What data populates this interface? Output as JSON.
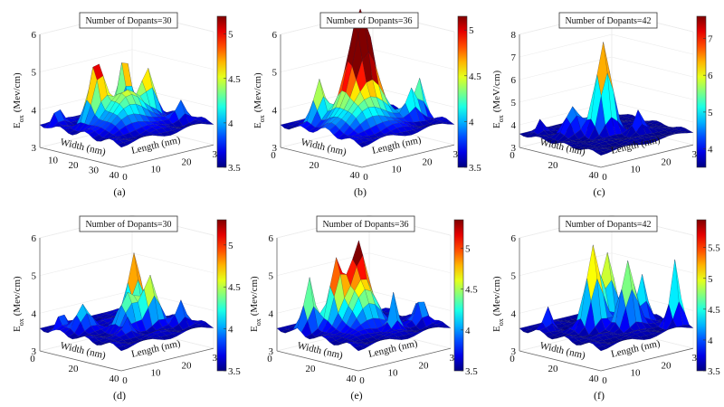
{
  "chart_data": [
    {
      "type": "surface",
      "caption": "(a)",
      "title": "Number of Dopants=30",
      "xlabel": "Width (nm)",
      "ylabel": "Length (nm)",
      "zlabel_main": "E",
      "zlabel_sub": "ox",
      "zlabel_unit": "(Mev/cm)",
      "xticks": [
        10,
        20,
        30,
        40
      ],
      "yticks": [
        0,
        10,
        20,
        30
      ],
      "zticks": [
        3,
        4,
        5,
        6
      ],
      "zlim": [
        3,
        6
      ],
      "clim": [
        3.5,
        5.2
      ],
      "cticks": [
        3.5,
        4,
        4.5,
        5
      ],
      "colormap": "jet",
      "grid": true,
      "base": 3.6,
      "surface_peaks": [
        [
          14,
          9,
          5.1,
          2.2
        ],
        [
          22,
          13,
          4.5,
          5
        ],
        [
          10,
          21,
          5.2,
          1.8
        ],
        [
          20,
          22,
          4.8,
          2
        ],
        [
          4,
          3,
          4.1,
          1.3
        ],
        [
          30,
          26,
          4.1,
          1.5
        ]
      ]
    },
    {
      "type": "surface",
      "caption": "(b)",
      "title": "Number of Dopants=36",
      "xlabel": "Width (nm)",
      "ylabel": "Length (nm)",
      "zlabel_main": "E",
      "zlabel_sub": "ox",
      "zlabel_unit": "(Mev/cm)",
      "xticks": [
        0,
        20,
        40
      ],
      "yticks": [
        0,
        10,
        20,
        30
      ],
      "zticks": [
        3,
        4,
        5,
        6
      ],
      "zlim": [
        3,
        6
      ],
      "clim": [
        3.5,
        5.15
      ],
      "cticks": [
        3.5,
        4,
        4.5,
        5
      ],
      "colormap": "jet",
      "grid": true,
      "base": 3.6,
      "surface_peaks": [
        [
          18,
          14,
          5.9,
          3
        ],
        [
          22,
          12,
          4.6,
          6
        ],
        [
          10,
          6,
          4.8,
          1.8
        ],
        [
          28,
          24,
          4.3,
          1.5
        ],
        [
          26,
          28,
          4.6,
          1.5
        ]
      ]
    },
    {
      "type": "surface",
      "caption": "(c)",
      "title": "Number of Dopants=42",
      "xlabel": "Width (nm)",
      "ylabel": "Length (nm)",
      "zlabel_main": "E",
      "zlabel_sub": "ox",
      "zlabel_unit": "(MeV/cm)",
      "xticks": [
        0,
        20,
        40
      ],
      "yticks": [
        0,
        10,
        20,
        30
      ],
      "zticks": [
        3,
        4,
        5,
        6,
        7,
        8
      ],
      "zlim": [
        3,
        8
      ],
      "clim": [
        3.5,
        7.6
      ],
      "cticks": [
        4,
        5,
        6,
        7
      ],
      "colormap": "jet",
      "grid": true,
      "base": 3.6,
      "surface_peaks": [
        [
          20,
          14,
          7.6,
          2.2
        ],
        [
          14,
          8,
          4.8,
          2.2
        ],
        [
          28,
          20,
          4.6,
          1.5
        ],
        [
          4,
          4,
          4.2,
          1.2
        ]
      ]
    },
    {
      "type": "surface",
      "caption": "(d)",
      "title": "Number of Dopants=30",
      "xlabel": "Width (nm)",
      "ylabel": "Length (nm)",
      "zlabel_main": "E",
      "zlabel_sub": "ox",
      "zlabel_unit": "(Mev/cm)",
      "xticks": [
        0,
        20,
        40
      ],
      "yticks": [
        0,
        10,
        20,
        30
      ],
      "zticks": [
        3,
        4,
        5,
        6
      ],
      "zlim": [
        3,
        6
      ],
      "clim": [
        3.5,
        5.3
      ],
      "cticks": [
        3.5,
        4,
        4.5,
        5
      ],
      "colormap": "jet",
      "grid": true,
      "base": 3.6,
      "surface_peaks": [
        [
          16,
          20,
          5.4,
          2
        ],
        [
          22,
          14,
          4.5,
          2.5
        ],
        [
          24,
          20,
          4.9,
          2
        ],
        [
          12,
          6,
          4.3,
          2
        ],
        [
          6,
          3,
          4.1,
          1.2
        ],
        [
          30,
          26,
          4.2,
          1.4
        ],
        [
          28,
          10,
          4.0,
          1.2
        ]
      ]
    },
    {
      "type": "surface",
      "caption": "(e)",
      "title": "Number of Dopants=36",
      "xlabel": "Width (nm)",
      "ylabel": "Length (nm)",
      "zlabel_main": "E",
      "zlabel_sub": "ox",
      "zlabel_unit": "(Mev/cm)",
      "xticks": [
        0,
        20,
        40
      ],
      "yticks": [
        0,
        10,
        20,
        30
      ],
      "zticks": [
        3,
        4,
        5,
        6
      ],
      "zlim": [
        3,
        6
      ],
      "clim": [
        3.5,
        5.35
      ],
      "cticks": [
        3.5,
        4,
        4.5,
        5
      ],
      "colormap": "jet",
      "grid": true,
      "base": 3.6,
      "surface_peaks": [
        [
          14,
          10,
          5.2,
          2
        ],
        [
          16,
          16,
          5.3,
          2
        ],
        [
          20,
          14,
          4.7,
          4
        ],
        [
          10,
          4,
          5.0,
          1.6
        ],
        [
          30,
          18,
          4.6,
          1.2
        ],
        [
          30,
          27,
          4.3,
          1.4
        ],
        [
          26,
          29,
          4.2,
          1.3
        ]
      ]
    },
    {
      "type": "surface",
      "caption": "(f)",
      "title": "Number of Dopants=42",
      "xlabel": "Width (nm)",
      "ylabel": "Length (nm)",
      "zlabel_main": "E",
      "zlabel_sub": "ox",
      "zlabel_unit": "(Mev/cm)",
      "xticks": [
        0,
        20,
        40
      ],
      "yticks": [
        0,
        10,
        20,
        30
      ],
      "zticks": [
        3,
        4,
        5,
        6
      ],
      "zlim": [
        3,
        6
      ],
      "clim": [
        3.5,
        5.95
      ],
      "cticks": [
        3.5,
        4,
        4.5,
        5,
        5.5
      ],
      "colormap": "jet",
      "grid": true,
      "base": 3.6,
      "surface_peaks": [
        [
          18,
          12,
          5.8,
          2
        ],
        [
          16,
          18,
          5.5,
          2
        ],
        [
          26,
          18,
          5.4,
          2
        ],
        [
          24,
          24,
          4.9,
          1.5
        ],
        [
          34,
          28,
          5.3,
          1.4
        ],
        [
          8,
          4,
          4.2,
          1.3
        ]
      ]
    }
  ]
}
